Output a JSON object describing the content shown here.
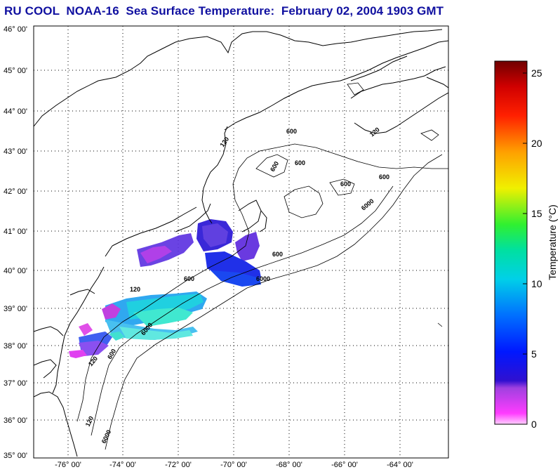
{
  "title": "RU COOL  NOAA-16  Sea Surface Temperature:  February 02, 2004 1903 GMT",
  "latitude_labels": [
    "46° 00'",
    "45° 00'",
    "44° 00'",
    "43° 00'",
    "42° 00'",
    "41° 00'",
    "40° 00'",
    "39° 00'",
    "38° 00'",
    "37° 00'",
    "36° 00'",
    "35° 00'"
  ],
  "longitude_labels": [
    "-76° 00'",
    "-74° 00'",
    "-72° 00'",
    "-70° 00'",
    "-68° 00'",
    "-66° 00'",
    "-64° 00'"
  ],
  "contour_labels": [
    "120",
    "600",
    "600",
    "600",
    "600",
    "6000",
    "6000",
    "600",
    "6000",
    "120",
    "600",
    "6000",
    "120",
    "600",
    "120",
    "600",
    "120"
  ],
  "colorbar": {
    "title": "Temperature (°C)",
    "ticks": [
      "25",
      "20",
      "15",
      "10",
      "5",
      "0"
    ],
    "range": [
      0,
      26
    ]
  },
  "colors": {
    "title": "#1010a0",
    "land_outline": "#000000",
    "grid": "#000000"
  }
}
